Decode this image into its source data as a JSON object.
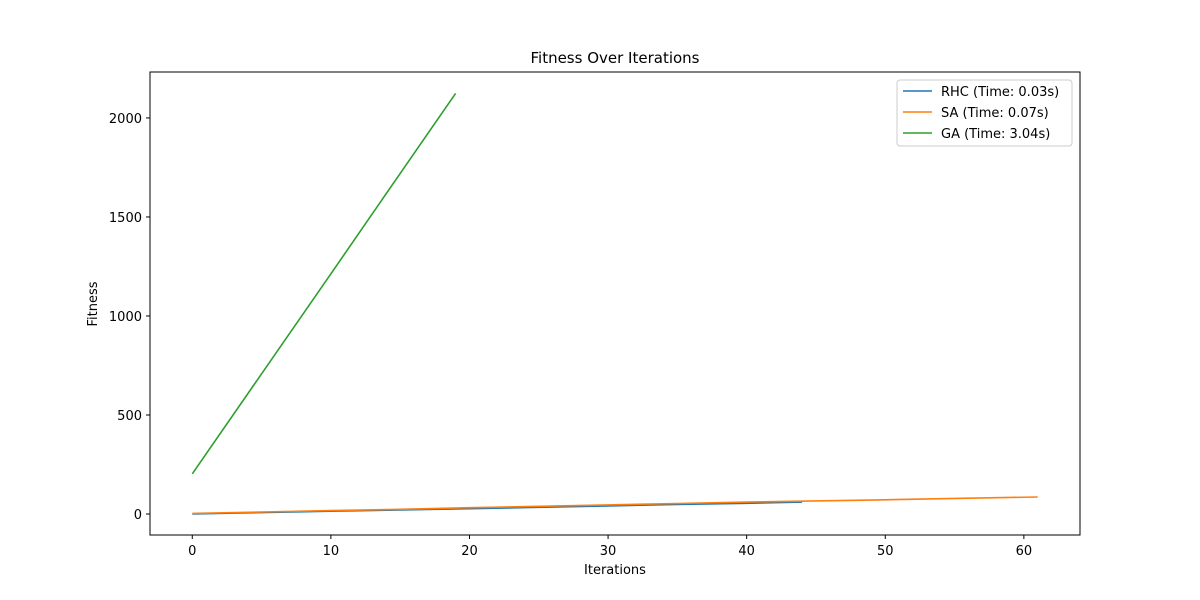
{
  "chart_data": {
    "type": "line",
    "title": "Fitness Over Iterations",
    "xlabel": "Iterations",
    "ylabel": "Fitness",
    "xlim": [
      -3.05,
      64.05
    ],
    "ylim": [
      -106,
      2232
    ],
    "xticks": [
      0,
      10,
      20,
      30,
      40,
      50,
      60
    ],
    "yticks": [
      0,
      500,
      1000,
      1500,
      2000
    ],
    "grid": false,
    "legend_position": "top-right",
    "series": [
      {
        "name": "RHC (Time: 0.03s)",
        "color": "#1f77b4",
        "x": [
          0,
          5,
          10,
          15,
          20,
          25,
          30,
          35,
          40,
          44
        ],
        "y": [
          0,
          7,
          14,
          20,
          27,
          34,
          41,
          48,
          54,
          60
        ]
      },
      {
        "name": "SA (Time: 0.07s)",
        "color": "#ff7f0e",
        "x": [
          0,
          5,
          10,
          15,
          20,
          25,
          30,
          35,
          40,
          45,
          50,
          55,
          61
        ],
        "y": [
          3,
          10,
          17,
          24,
          32,
          39,
          46,
          53,
          60,
          66,
          72,
          79,
          86
        ]
      },
      {
        "name": "GA (Time: 3.04s)",
        "color": "#2ca02c",
        "x": [
          0,
          5,
          10,
          15,
          19
        ],
        "y": [
          203,
          708,
          1213,
          1720,
          2124
        ]
      }
    ]
  }
}
